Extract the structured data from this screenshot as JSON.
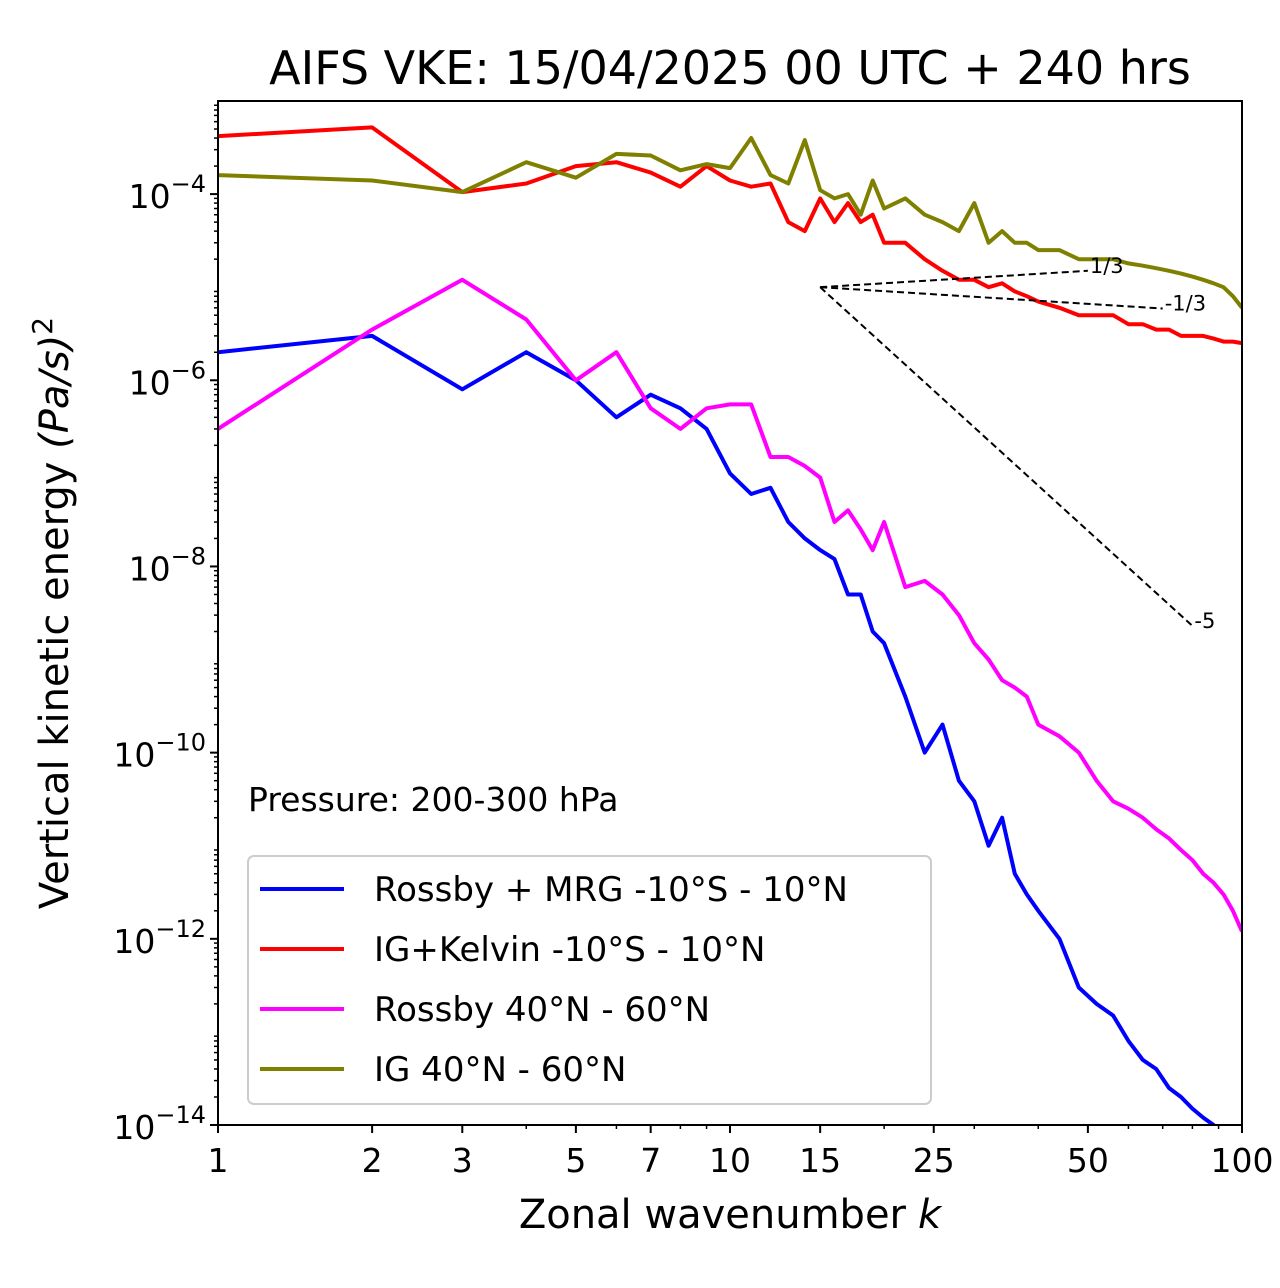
{
  "chart_data": {
    "type": "line",
    "title": "AIFS VKE: 15/04/2025 00 UTC + 240 hrs",
    "xlabel": "Zonal wavenumber",
    "xlabel_italic": "k",
    "ylabel_main": "Vertical kinetic energy ",
    "ylabel_math": "(Pa/s)",
    "ylabel_sup": "2",
    "x_scale": "log",
    "y_scale": "log",
    "xlim": [
      1,
      100
    ],
    "ylim": [
      1e-14,
      0.001
    ],
    "x_ticks": [
      1,
      2,
      3,
      5,
      7,
      10,
      15,
      25,
      50,
      100
    ],
    "x_tick_labels": [
      "1",
      "2",
      "3",
      "5",
      "7",
      "10",
      "15",
      "25",
      "50",
      "100"
    ],
    "y_ticks": [
      {
        "value": 1e-14,
        "base": "10",
        "exp": "−14"
      },
      {
        "value": 1e-12,
        "base": "10",
        "exp": "−12"
      },
      {
        "value": 1e-10,
        "base": "10",
        "exp": "−10"
      },
      {
        "value": 1e-08,
        "base": "10",
        "exp": "−8"
      },
      {
        "value": 1e-06,
        "base": "10",
        "exp": "−6"
      },
      {
        "value": 0.0001,
        "base": "10",
        "exp": "−4"
      }
    ],
    "grid": false,
    "legend_position": "lower-left",
    "annotation": "Pressure: 200-300 hPa",
    "reference_slopes": [
      {
        "label": "1/3",
        "from": [
          15,
          1e-05
        ],
        "to": [
          50,
          1.5e-05
        ]
      },
      {
        "label": "-1/3",
        "from": [
          15,
          1e-05
        ],
        "to": [
          70,
          5.9e-06
        ]
      },
      {
        "label": "-5",
        "from": [
          15,
          1e-05
        ],
        "to": [
          80,
          2.3e-09
        ]
      }
    ],
    "series": [
      {
        "name": "Rossby + MRG -10°S - 10°N",
        "color": "#0000ff",
        "x": [
          1,
          2,
          3,
          4,
          5,
          6,
          7,
          8,
          9,
          10,
          11,
          12,
          13,
          14,
          15,
          16,
          17,
          18,
          19,
          20,
          22,
          24,
          26,
          28,
          30,
          32,
          34,
          36,
          38,
          40,
          44,
          48,
          52,
          56,
          60,
          64,
          68,
          72,
          76,
          80,
          84,
          88,
          92,
          96,
          100
        ],
        "y": [
          2e-06,
          3e-06,
          8e-07,
          2e-06,
          1e-06,
          4e-07,
          7e-07,
          5e-07,
          3e-07,
          1e-07,
          6e-08,
          7e-08,
          3e-08,
          2e-08,
          1.5e-08,
          1.2e-08,
          5e-09,
          5e-09,
          2e-09,
          1.5e-09,
          4e-10,
          1e-10,
          2e-10,
          5e-11,
          3e-11,
          1e-11,
          2e-11,
          5e-12,
          3e-12,
          2e-12,
          1e-12,
          3e-13,
          2e-13,
          1.5e-13,
          8e-14,
          5e-14,
          4e-14,
          2.5e-14,
          2e-14,
          1.5e-14,
          1.2e-14,
          1e-14,
          8e-15,
          5e-15,
          3e-15
        ]
      },
      {
        "name": "IG+Kelvin -10°S - 10°N",
        "color": "#ff0000",
        "x": [
          1,
          2,
          3,
          4,
          5,
          6,
          7,
          8,
          9,
          10,
          11,
          12,
          13,
          14,
          15,
          16,
          17,
          18,
          19,
          20,
          22,
          24,
          26,
          28,
          30,
          32,
          34,
          36,
          38,
          40,
          44,
          48,
          52,
          56,
          60,
          64,
          68,
          72,
          76,
          80,
          84,
          88,
          92,
          96,
          100
        ],
        "y": [
          0.00042,
          0.00052,
          0.000105,
          0.00013,
          0.0002,
          0.00022,
          0.00017,
          0.00012,
          0.0002,
          0.00014,
          0.00012,
          0.00013,
          5e-05,
          4e-05,
          9e-05,
          5e-05,
          8e-05,
          5e-05,
          6e-05,
          3e-05,
          3e-05,
          2e-05,
          1.5e-05,
          1.2e-05,
          1.2e-05,
          1e-05,
          1.1e-05,
          9e-06,
          8e-06,
          7e-06,
          6e-06,
          5e-06,
          5e-06,
          5e-06,
          4e-06,
          4e-06,
          3.5e-06,
          3.5e-06,
          3e-06,
          3e-06,
          3e-06,
          2.8e-06,
          2.6e-06,
          2.6e-06,
          2.5e-06
        ]
      },
      {
        "name": "Rossby 40°N - 60°N",
        "color": "#ff00ff",
        "x": [
          1,
          2,
          3,
          4,
          5,
          6,
          7,
          8,
          9,
          10,
          11,
          12,
          13,
          14,
          15,
          16,
          17,
          18,
          19,
          20,
          22,
          24,
          26,
          28,
          30,
          32,
          34,
          36,
          38,
          40,
          44,
          48,
          52,
          56,
          60,
          64,
          68,
          72,
          76,
          80,
          84,
          88,
          92,
          96,
          100
        ],
        "y": [
          3e-07,
          3.5e-06,
          1.2e-05,
          4.5e-06,
          1e-06,
          2e-06,
          5e-07,
          3e-07,
          5e-07,
          5.5e-07,
          5.5e-07,
          1.5e-07,
          1.5e-07,
          1.2e-07,
          9e-08,
          3e-08,
          4e-08,
          2.5e-08,
          1.5e-08,
          3e-08,
          6e-09,
          7e-09,
          5e-09,
          3e-09,
          1.5e-09,
          1e-09,
          6e-10,
          5e-10,
          4e-10,
          2e-10,
          1.5e-10,
          1e-10,
          5e-11,
          3e-11,
          2.5e-11,
          2e-11,
          1.5e-11,
          1.2e-11,
          9e-12,
          7e-12,
          5e-12,
          4e-12,
          3e-12,
          2e-12,
          1.2e-12
        ]
      },
      {
        "name": "IG 40°N - 60°N",
        "color": "#808000",
        "x": [
          1,
          2,
          3,
          4,
          5,
          6,
          7,
          8,
          9,
          10,
          11,
          12,
          13,
          14,
          15,
          16,
          17,
          18,
          19,
          20,
          22,
          24,
          26,
          28,
          30,
          32,
          34,
          36,
          38,
          40,
          44,
          48,
          52,
          56,
          60,
          64,
          68,
          72,
          76,
          80,
          84,
          88,
          92,
          96,
          100
        ],
        "y": [
          0.00016,
          0.00014,
          0.000105,
          0.00022,
          0.00015,
          0.00027,
          0.00026,
          0.00018,
          0.00021,
          0.00019,
          0.0004,
          0.00016,
          0.00013,
          0.00038,
          0.00011,
          9e-05,
          0.0001,
          6e-05,
          0.00014,
          7e-05,
          9e-05,
          6e-05,
          5e-05,
          4e-05,
          8e-05,
          3e-05,
          4e-05,
          3e-05,
          3e-05,
          2.5e-05,
          2.5e-05,
          2e-05,
          2e-05,
          2e-05,
          1.8e-05,
          1.7e-05,
          1.6e-05,
          1.5e-05,
          1.4e-05,
          1.3e-05,
          1.2e-05,
          1.1e-05,
          1e-05,
          8e-06,
          6e-06
        ]
      }
    ]
  }
}
